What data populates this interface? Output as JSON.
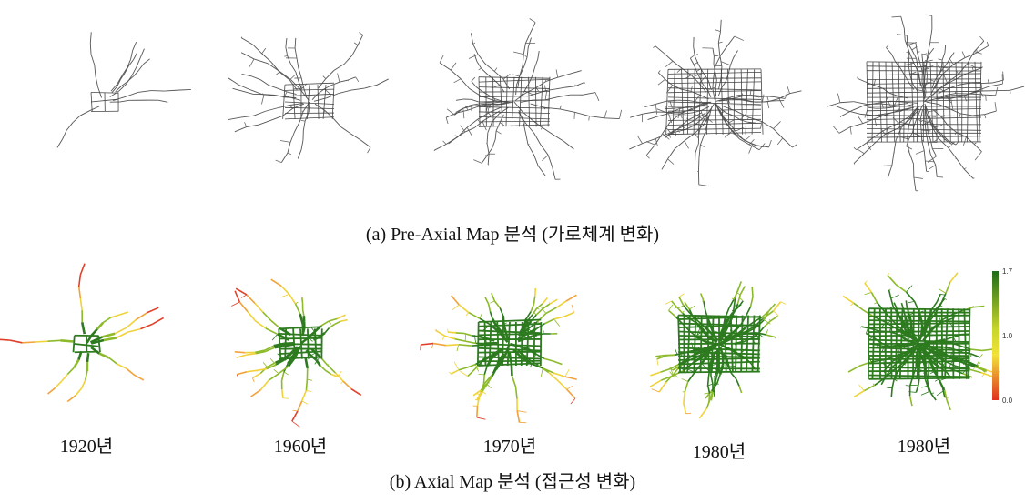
{
  "top_caption": "(a) Pre-Axial Map 분석 (가로체계 변화)",
  "bottom_labels": [
    "1920년",
    "1960년",
    "1970년",
    "1980년",
    "1980년"
  ],
  "bottom_caption": "(b) Axial Map 분석 (접근성 변화)",
  "legend_ticks": [
    "1.7",
    "1.0",
    "0.0"
  ]
}
